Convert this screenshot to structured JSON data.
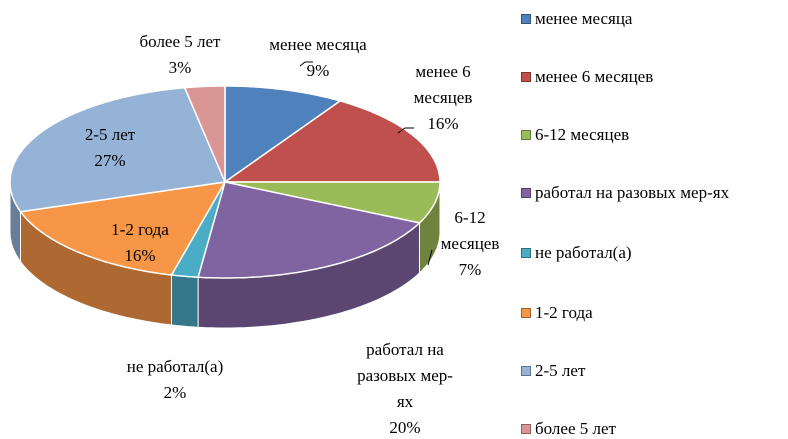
{
  "chart_data": {
    "type": "pie3d",
    "categories": [
      "менее месяца",
      "менее 6 месяцев",
      "6-12 месяцев",
      "работал на разовых мер-ях",
      "не работал(а)",
      "1-2 года",
      "2-5 лет",
      "более 5 лет"
    ],
    "values": [
      9,
      16,
      7,
      20,
      2,
      16,
      27,
      3
    ],
    "value_labels": [
      "9%",
      "16%",
      "7%",
      "20%",
      "2%",
      "16%",
      "27%",
      "3%"
    ],
    "colors": [
      "#4f81bd",
      "#c0504d",
      "#9bbb59",
      "#8064a2",
      "#4bacc6",
      "#f79646",
      "#95b3d7",
      "#d99694"
    ],
    "legend": "right"
  }
}
